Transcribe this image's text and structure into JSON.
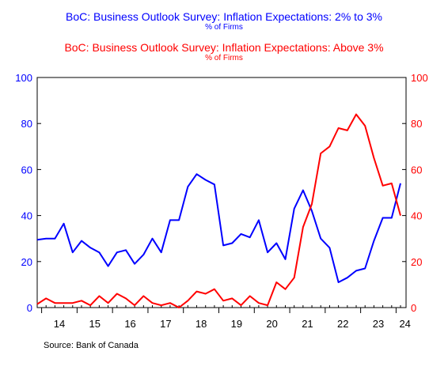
{
  "colors": {
    "series1": "#0000ff",
    "series2": "#ff0000",
    "axis": "#000000"
  },
  "footer": {
    "source": "Source:  Bank of Canada"
  },
  "chart_data": {
    "type": "line",
    "x_tick_labels": [
      "14",
      "15",
      "16",
      "17",
      "18",
      "19",
      "20",
      "21",
      "22",
      "23",
      "24"
    ],
    "x_period": "quarterly",
    "x_start": "2013Q4",
    "left_axis": {
      "ylim": [
        0,
        100
      ],
      "ticks": [
        0,
        20,
        40,
        60,
        80,
        100
      ],
      "color": "#0000ff"
    },
    "right_axis": {
      "ylim": [
        0,
        100
      ],
      "ticks": [
        0,
        20,
        40,
        60,
        80,
        100
      ],
      "color": "#ff0000"
    },
    "grid": false,
    "series": [
      {
        "name": "BoC: Business Outlook Survey: Inflation Expectations: 2% to 3%",
        "unit": "% of Firms",
        "axis": "left",
        "color": "#0000ff",
        "values": [
          29.5,
          30,
          30,
          36.5,
          24,
          29,
          26,
          24,
          18,
          24,
          25,
          19,
          23,
          30,
          24,
          38,
          38,
          52.5,
          58,
          55.5,
          53.5,
          27,
          28,
          32,
          30.5,
          38,
          24,
          28,
          21,
          43,
          51,
          42,
          30,
          26,
          11,
          13,
          16,
          17,
          29,
          39,
          39,
          54
        ]
      },
      {
        "name": "BoC: Business Outlook Survey: Inflation Expectations: Above 3%",
        "unit": "% of Firms",
        "axis": "right",
        "color": "#ff0000",
        "values": [
          1.5,
          4,
          2,
          2,
          2,
          3,
          1,
          5,
          2,
          6,
          4,
          1,
          5,
          2,
          1,
          2,
          0,
          3,
          7,
          6,
          8,
          3,
          4,
          1,
          5,
          2,
          1,
          11,
          8,
          13,
          35,
          45,
          67,
          70,
          78,
          77,
          84,
          79,
          65,
          53,
          54,
          40
        ]
      }
    ]
  }
}
